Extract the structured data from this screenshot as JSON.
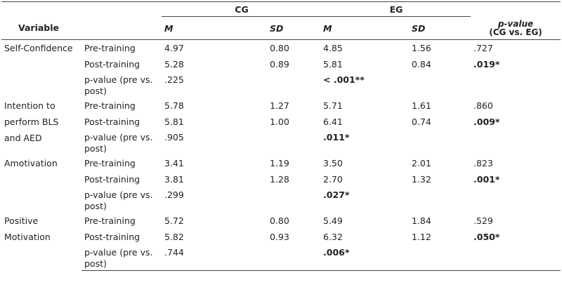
{
  "header": {
    "group_cg": "CG",
    "group_eg": "EG",
    "variable": "Variable",
    "m_cg": "M",
    "sd_cg": "SD",
    "m_eg": "M",
    "sd_eg": "SD",
    "pvalue_title": "p-value",
    "pvalue_sub": "(CG vs. EG)"
  },
  "sections": [
    {
      "variable": [
        "Self-Confidence"
      ],
      "rows": [
        {
          "label": "Pre-training",
          "m_cg": "4.97",
          "sd_cg": "0.80",
          "m_eg": "4.85",
          "sd_eg": "1.56",
          "p": ".727"
        },
        {
          "label": "Post-training",
          "m_cg": "5.28",
          "sd_cg": "0.89",
          "m_eg": "5.81",
          "sd_eg": "0.84",
          "p": ".019*"
        },
        {
          "label": "p-value (pre vs. post)",
          "m_cg": ".225",
          "sd_cg": "",
          "m_eg": "< .001**",
          "sd_eg": "",
          "p": ""
        }
      ]
    },
    {
      "variable": [
        "Intention to",
        "perform BLS",
        "and AED"
      ],
      "rows": [
        {
          "label": "Pre-training",
          "m_cg": "5.78",
          "sd_cg": "1.27",
          "m_eg": "5.71",
          "sd_eg": "1.61",
          "p": ".860"
        },
        {
          "label": "Post-training",
          "m_cg": "5.81",
          "sd_cg": "1.00",
          "m_eg": "6.41",
          "sd_eg": "0.74",
          "p": ".009*"
        },
        {
          "label": "p-value (pre vs. post)",
          "m_cg": ".905",
          "sd_cg": "",
          "m_eg": ".011*",
          "sd_eg": "",
          "p": ""
        }
      ]
    },
    {
      "variable": [
        "Amotivation"
      ],
      "rows": [
        {
          "label": "Pre-training",
          "m_cg": "3.41",
          "sd_cg": "1.19",
          "m_eg": "3.50",
          "sd_eg": "2.01",
          "p": ".823"
        },
        {
          "label": "Post-training",
          "m_cg": "3.81",
          "sd_cg": "1.28",
          "m_eg": "2.70",
          "sd_eg": "1.32",
          "p": ".001*"
        },
        {
          "label": "p-value (pre vs. post)",
          "m_cg": ".299",
          "sd_cg": "",
          "m_eg": ".027*",
          "sd_eg": "",
          "p": ""
        }
      ]
    },
    {
      "variable": [
        "Positive",
        "Motivation"
      ],
      "rows": [
        {
          "label": "Pre-training",
          "m_cg": "5.72",
          "sd_cg": "0.80",
          "m_eg": "5.49",
          "sd_eg": "1.84",
          "p": ".529"
        },
        {
          "label": "Post-training",
          "m_cg": "5.82",
          "sd_cg": "0.93",
          "m_eg": "6.32",
          "sd_eg": "1.12",
          "p": ".050*"
        },
        {
          "label": "p-value (pre vs. post)",
          "m_cg": ".744",
          "sd_cg": "",
          "m_eg": ".006*",
          "sd_eg": "",
          "p": ""
        }
      ]
    }
  ]
}
